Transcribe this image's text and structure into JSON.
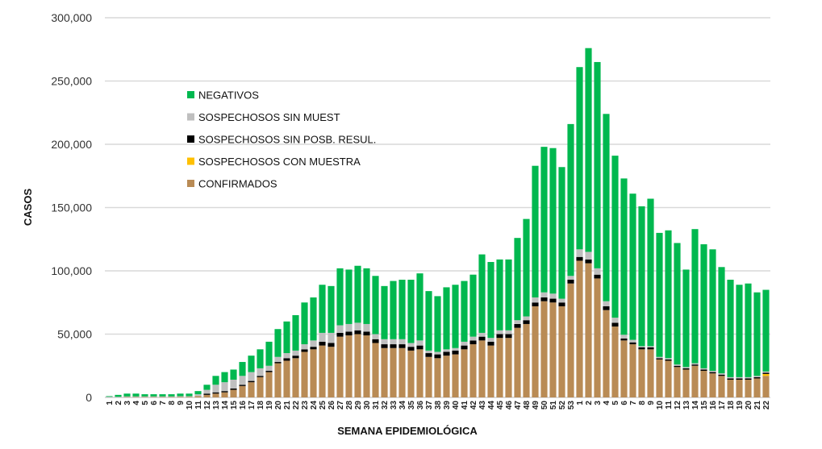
{
  "chart_data": {
    "type": "bar",
    "stacked": true,
    "title": "",
    "xlabel": "SEMANA EPIDEMIOLÓGICA",
    "ylabel": "CASOS",
    "ylim": [
      0,
      300000
    ],
    "yticks": [
      "0",
      "50,000",
      "100,000",
      "150,000",
      "200,000",
      "250,000",
      "300,000"
    ],
    "grid": true,
    "legend_position": "top-left",
    "categories": [
      "1",
      "2",
      "3",
      "4",
      "5",
      "6",
      "7",
      "8",
      "9",
      "10",
      "11",
      "12",
      "13",
      "14",
      "15",
      "16",
      "17",
      "18",
      "19",
      "20",
      "21",
      "22",
      "23",
      "24",
      "25",
      "26",
      "27",
      "28",
      "29",
      "30",
      "31",
      "32",
      "33",
      "34",
      "35",
      "36",
      "37",
      "38",
      "39",
      "40",
      "41",
      "42",
      "43",
      "44",
      "45",
      "46",
      "47",
      "48",
      "49",
      "50",
      "51",
      "52",
      "53",
      "1",
      "2",
      "3",
      "4",
      "5",
      "6",
      "7",
      "8",
      "9",
      "10",
      "11",
      "12",
      "13",
      "14",
      "15",
      "16",
      "17",
      "18",
      "19",
      "20",
      "21",
      "22"
    ],
    "series": [
      {
        "name": "CONFIRMADOS",
        "color": "#b98b55",
        "values": [
          0,
          0,
          300,
          300,
          300,
          300,
          300,
          300,
          500,
          500,
          1000,
          2000,
          3000,
          4000,
          6000,
          9000,
          12000,
          16000,
          20000,
          27000,
          29000,
          31000,
          36000,
          38000,
          41000,
          40000,
          48000,
          49000,
          50000,
          49000,
          43000,
          39000,
          39000,
          39000,
          37000,
          38000,
          32000,
          31000,
          33000,
          34000,
          38000,
          42000,
          45000,
          41000,
          47000,
          47000,
          55000,
          58000,
          72000,
          76000,
          75000,
          72000,
          90000,
          108000,
          106000,
          94000,
          69000,
          56000,
          45000,
          42000,
          38000,
          38000,
          30000,
          29000,
          24000,
          22000,
          25000,
          21000,
          19000,
          17000,
          14000,
          14000,
          14000,
          15000,
          17000
        ]
      },
      {
        "name": "SOSPECHOSOS CON MUESTRA",
        "color": "#ffc000",
        "values": [
          0,
          0,
          0,
          0,
          0,
          0,
          0,
          0,
          0,
          0,
          0,
          0,
          0,
          0,
          0,
          0,
          0,
          0,
          0,
          0,
          0,
          0,
          0,
          0,
          0,
          0,
          0,
          0,
          0,
          0,
          0,
          0,
          0,
          0,
          0,
          0,
          0,
          0,
          0,
          0,
          0,
          0,
          0,
          0,
          0,
          0,
          0,
          0,
          0,
          0,
          0,
          0,
          0,
          0,
          0,
          0,
          0,
          0,
          0,
          0,
          0,
          0,
          0,
          0,
          0,
          0,
          0,
          0,
          0,
          0,
          0,
          0,
          0,
          0,
          1500
        ]
      },
      {
        "name": "SOSPECHOSOS SIN POSB. RESUL.",
        "color": "#000000",
        "values": [
          0,
          0,
          0,
          0,
          0,
          0,
          0,
          0,
          0,
          0,
          0,
          1000,
          1000,
          1000,
          1000,
          1000,
          1000,
          1000,
          1000,
          1000,
          2000,
          2000,
          2000,
          2000,
          3000,
          3000,
          3000,
          3000,
          3000,
          3000,
          3000,
          3000,
          3000,
          3000,
          3000,
          3000,
          3000,
          3000,
          3000,
          3000,
          3000,
          3000,
          3000,
          3000,
          3000,
          3000,
          3000,
          3000,
          3000,
          3000,
          3000,
          3000,
          3000,
          3000,
          3000,
          3000,
          3000,
          3000,
          1500,
          1500,
          1500,
          1500,
          1000,
          1000,
          1000,
          1000,
          1000,
          1000,
          1000,
          1000,
          1000,
          1000,
          1000,
          1000,
          1000
        ]
      },
      {
        "name": "SOSPECHOSOS SIN MUEST",
        "color": "#bfbfbf",
        "values": [
          500,
          500,
          500,
          500,
          500,
          500,
          500,
          500,
          500,
          500,
          1500,
          3000,
          6000,
          7000,
          7000,
          7000,
          7000,
          6000,
          4000,
          4000,
          4000,
          4000,
          4000,
          5000,
          7000,
          8000,
          6000,
          6000,
          6000,
          6000,
          4000,
          4000,
          4000,
          4000,
          3000,
          4000,
          2000,
          2000,
          2000,
          2000,
          3000,
          3000,
          3000,
          3000,
          3000,
          3000,
          3000,
          3000,
          4000,
          4000,
          4000,
          3000,
          3000,
          6000,
          6000,
          5000,
          4000,
          4000,
          3000,
          2000,
          1000,
          1000,
          1000,
          1000,
          1000,
          1000,
          1000,
          1000,
          1000,
          1000,
          1000,
          1000,
          1000,
          1000,
          1000
        ]
      },
      {
        "name": "NEGATIVOS",
        "color": "#00b84f",
        "values": [
          500,
          1500,
          2200,
          2200,
          1700,
          1700,
          1700,
          1700,
          2000,
          2000,
          2500,
          4000,
          7000,
          8000,
          8000,
          11000,
          13000,
          15000,
          19000,
          22000,
          25000,
          28000,
          33000,
          34000,
          38000,
          37000,
          45000,
          43000,
          45000,
          44000,
          46000,
          42000,
          46000,
          47000,
          50000,
          53000,
          47000,
          44000,
          49000,
          50000,
          48000,
          49000,
          62000,
          60000,
          56000,
          56000,
          65000,
          77000,
          104000,
          115000,
          115000,
          104000,
          120000,
          144000,
          161000,
          163000,
          148000,
          128000,
          123500,
          115500,
          110500,
          116500,
          98000,
          101000,
          96000,
          77000,
          106000,
          98000,
          96000,
          84000,
          77000,
          73000,
          74000,
          66000,
          64500
        ]
      }
    ],
    "legend_order": [
      "NEGATIVOS",
      "SOSPECHOSOS SIN MUEST",
      "SOSPECHOSOS SIN POSB. RESUL.",
      "SOSPECHOSOS CON MUESTRA",
      "CONFIRMADOS"
    ]
  }
}
